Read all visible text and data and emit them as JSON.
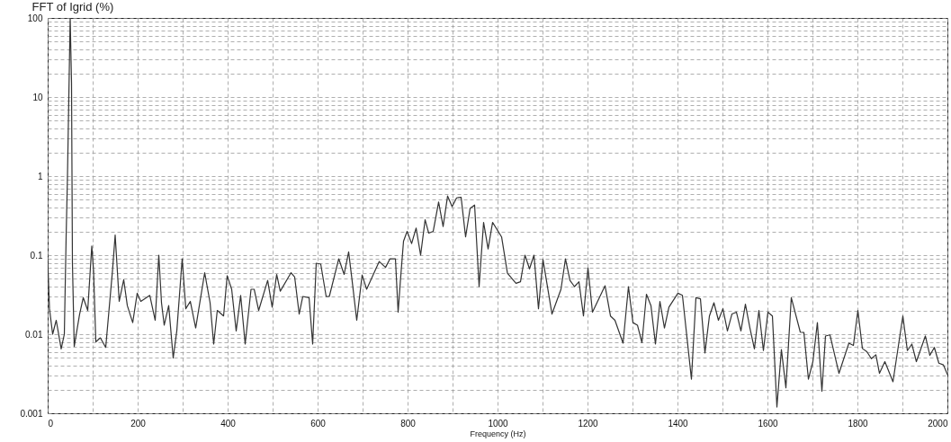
{
  "chart_data": {
    "type": "line",
    "ylabel": "FFT of Igrid (%)",
    "xlabel": "Frequency (Hz)",
    "log": "y",
    "grid": true,
    "marker": "none",
    "line_style": "solid",
    "xlim": [
      0,
      2000
    ],
    "ylim": [
      0.001,
      100
    ],
    "xticks": [
      0,
      {
        "value": 100,
        "label": null
      },
      200,
      {
        "value": 300,
        "label": null
      },
      400,
      {
        "value": 500,
        "label": null
      },
      600,
      {
        "value": 700,
        "label": null
      },
      800,
      {
        "value": 900,
        "label": null
      },
      1000,
      {
        "value": 1100,
        "label": null
      },
      1200,
      {
        "value": 1300,
        "label": null
      },
      1400,
      {
        "value": 1500,
        "label": null
      },
      1600,
      {
        "value": 1700,
        "label": null
      },
      1800,
      {
        "value": 1900,
        "label": null
      },
      2000
    ],
    "yticks": [
      0.001,
      {
        "value": 0.002,
        "label": null
      },
      {
        "value": 0.003,
        "label": null
      },
      {
        "value": 0.004,
        "label": null
      },
      {
        "value": 0.005,
        "label": null
      },
      {
        "value": 0.006,
        "label": null
      },
      {
        "value": 0.007,
        "label": null
      },
      {
        "value": 0.008,
        "label": null
      },
      {
        "value": 0.009,
        "label": null
      },
      0.01,
      {
        "value": 0.02,
        "label": null
      },
      {
        "value": 0.03,
        "label": null
      },
      {
        "value": 0.04,
        "label": null
      },
      {
        "value": 0.05,
        "label": null
      },
      {
        "value": 0.06,
        "label": null
      },
      {
        "value": 0.07,
        "label": null
      },
      {
        "value": 0.08,
        "label": null
      },
      {
        "value": 0.09,
        "label": null
      },
      0.1,
      {
        "value": 0.2,
        "label": null
      },
      {
        "value": 0.3,
        "label": null
      },
      {
        "value": 0.4,
        "label": null
      },
      {
        "value": 0.5,
        "label": null
      },
      {
        "value": 0.6,
        "label": null
      },
      {
        "value": 0.7,
        "label": null
      },
      {
        "value": 0.8,
        "label": null
      },
      {
        "value": 0.9,
        "label": null
      },
      1,
      {
        "value": 2,
        "label": null
      },
      {
        "value": 3,
        "label": null
      },
      {
        "value": 4,
        "label": null
      },
      {
        "value": 5,
        "label": null
      },
      {
        "value": 6,
        "label": null
      },
      {
        "value": 7,
        "label": null
      },
      {
        "value": 8,
        "label": null
      },
      {
        "value": 9,
        "label": null
      },
      10,
      {
        "value": 20,
        "label": null
      },
      {
        "value": 30,
        "label": null
      },
      {
        "value": 40,
        "label": null
      },
      {
        "value": 50,
        "label": null
      },
      {
        "value": 60,
        "label": null
      },
      {
        "value": 70,
        "label": null
      },
      {
        "value": 80,
        "label": null
      },
      {
        "value": 90,
        "label": null
      },
      100
    ],
    "series": [
      {
        "color": "#333333",
        "x": [
          0,
          4,
          11,
          19,
          30,
          37,
          41,
          44,
          47,
          50,
          53,
          55,
          59,
          71,
          79,
          89,
          98,
          102,
          107,
          117,
          129,
          144,
          150,
          159,
          169,
          177,
          189,
          199,
          207,
          227,
          239,
          247,
          253,
          259,
          269,
          279,
          287,
          299,
          307,
          317,
          329,
          349,
          361,
          369,
          377,
          391,
          399,
          409,
          419,
          429,
          439,
          452,
          459,
          469,
          489,
          499,
          509,
          517,
          541,
          549,
          559,
          567,
          581,
          589,
          597,
          607,
          619,
          626,
          647,
          659,
          669,
          677,
          687,
          699,
          709,
          737,
          751,
          761,
          773,
          779,
          784,
          791,
          799,
          809,
          819,
          829,
          839,
          847,
          857,
          869,
          879,
          889,
          899,
          909,
          919,
          929,
          939,
          949,
          959,
          969,
          979,
          989,
          1009,
          1022,
          1041,
          1051,
          1061,
          1071,
          1081,
          1091,
          1101,
          1121,
          1141,
          1151,
          1161,
          1171,
          1181,
          1191,
          1201,
          1211,
          1239,
          1251,
          1261,
          1279,
          1291,
          1301,
          1311,
          1321,
          1331,
          1341,
          1351,
          1361,
          1371,
          1381,
          1401,
          1411,
          1431,
          1441,
          1451,
          1461,
          1471,
          1481,
          1491,
          1501,
          1511,
          1521,
          1531,
          1541,
          1551,
          1561,
          1571,
          1581,
          1591,
          1601,
          1611,
          1621,
          1631,
          1641,
          1653,
          1673,
          1681,
          1691,
          1701,
          1711,
          1721,
          1729,
          1739,
          1759,
          1781,
          1791,
          1801,
          1811,
          1821,
          1831,
          1841,
          1849,
          1861,
          1879,
          1901,
          1911,
          1921,
          1931,
          1951,
          1961,
          1971,
          1981,
          1991,
          2000
        ],
        "values": [
          0.09,
          0.021,
          0.01,
          0.015,
          0.0065,
          0.01,
          0.17,
          1,
          10,
          100,
          15,
          0.08,
          0.007,
          0.018,
          0.029,
          0.02,
          0.13,
          0.063,
          0.008,
          0.009,
          0.0068,
          0.063,
          0.18,
          0.026,
          0.049,
          0.023,
          0.014,
          0.033,
          0.026,
          0.031,
          0.015,
          0.1,
          0.025,
          0.013,
          0.023,
          0.005,
          0.011,
          0.09,
          0.021,
          0.026,
          0.012,
          0.06,
          0.025,
          0.0075,
          0.02,
          0.017,
          0.055,
          0.037,
          0.011,
          0.031,
          0.0075,
          0.037,
          0.037,
          0.02,
          0.048,
          0.022,
          0.057,
          0.035,
          0.06,
          0.053,
          0.018,
          0.03,
          0.029,
          0.0075,
          0.079,
          0.077,
          0.03,
          0.03,
          0.09,
          0.057,
          0.11,
          0.046,
          0.015,
          0.056,
          0.037,
          0.083,
          0.07,
          0.09,
          0.09,
          0.019,
          0.047,
          0.15,
          0.2,
          0.14,
          0.22,
          0.1,
          0.28,
          0.19,
          0.2,
          0.47,
          0.23,
          0.56,
          0.41,
          0.53,
          0.54,
          0.17,
          0.39,
          0.43,
          0.04,
          0.26,
          0.12,
          0.26,
          0.17,
          0.059,
          0.044,
          0.046,
          0.1,
          0.067,
          0.1,
          0.021,
          0.088,
          0.018,
          0.037,
          0.09,
          0.048,
          0.04,
          0.046,
          0.017,
          0.069,
          0.019,
          0.041,
          0.017,
          0.015,
          0.0077,
          0.04,
          0.014,
          0.013,
          0.0078,
          0.032,
          0.023,
          0.0075,
          0.026,
          0.012,
          0.022,
          0.033,
          0.031,
          0.0027,
          0.029,
          0.028,
          0.0058,
          0.017,
          0.025,
          0.015,
          0.021,
          0.011,
          0.018,
          0.019,
          0.011,
          0.024,
          0.012,
          0.0065,
          0.02,
          0.0062,
          0.019,
          0.017,
          0.0012,
          0.0064,
          0.0021,
          0.029,
          0.0106,
          0.0105,
          0.0027,
          0.0045,
          0.014,
          0.0019,
          0.0095,
          0.0098,
          0.0032,
          0.0077,
          0.0072,
          0.02,
          0.0066,
          0.006,
          0.0049,
          0.0055,
          0.0032,
          0.0045,
          0.0025,
          0.017,
          0.0062,
          0.0075,
          0.0045,
          0.0095,
          0.0054,
          0.0068,
          0.0043,
          0.0041,
          0.0031
        ]
      }
    ]
  }
}
